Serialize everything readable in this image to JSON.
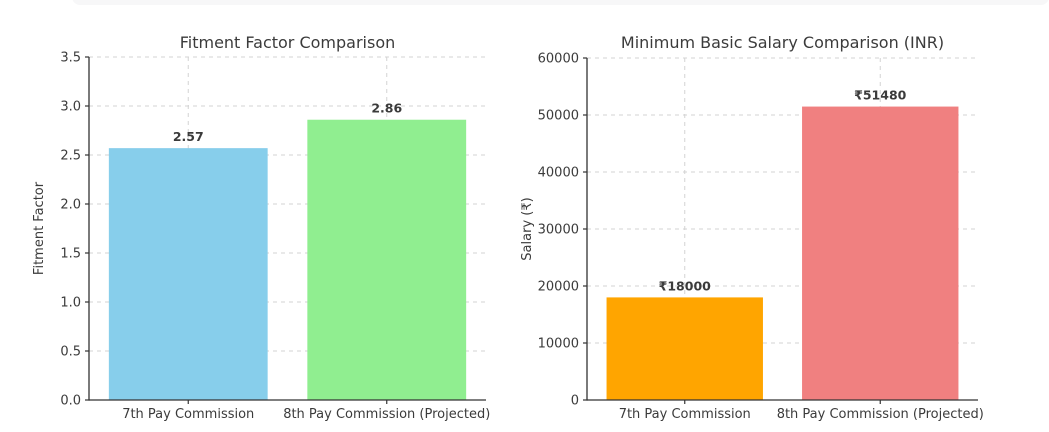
{
  "page": {
    "background": "#ffffff",
    "top_strip": {
      "color": "#f7f7f8"
    }
  },
  "style": {
    "grid_color": "#d3d3d3",
    "spine_color": "#333333",
    "tick_color": "#333333",
    "text_color": "#3b3b3b",
    "value_label_color": "#333333"
  },
  "chart_data": [
    {
      "type": "bar",
      "title": "Fitment Factor Comparison",
      "xlabel": "",
      "ylabel": "Fitment Factor",
      "categories": [
        "7th Pay Commission",
        "8th Pay Commission (Projected)"
      ],
      "values": [
        2.57,
        2.86
      ],
      "bar_labels": [
        "2.57",
        "2.86"
      ],
      "bar_colors": [
        "#87CEEB",
        "#90EE90"
      ],
      "ylim": [
        0,
        3.5
      ],
      "ytick_step": 0.5,
      "ytick_decimals": 1,
      "grid": {
        "horizontal": true,
        "vertical": true,
        "style": "dashed"
      },
      "legend": null
    },
    {
      "type": "bar",
      "title": "Minimum Basic Salary Comparison (INR)",
      "xlabel": "",
      "ylabel": "Salary (₹)",
      "categories": [
        "7th Pay Commission",
        "8th Pay Commission (Projected)"
      ],
      "values": [
        18000,
        51480
      ],
      "bar_labels": [
        "₹18000",
        "₹51480"
      ],
      "bar_colors": [
        "#FFA500",
        "#F08080"
      ],
      "ylim": [
        0,
        60000
      ],
      "ytick_step": 10000,
      "ytick_decimals": 0,
      "grid": {
        "horizontal": true,
        "vertical": true,
        "style": "dashed"
      },
      "legend": null
    }
  ]
}
